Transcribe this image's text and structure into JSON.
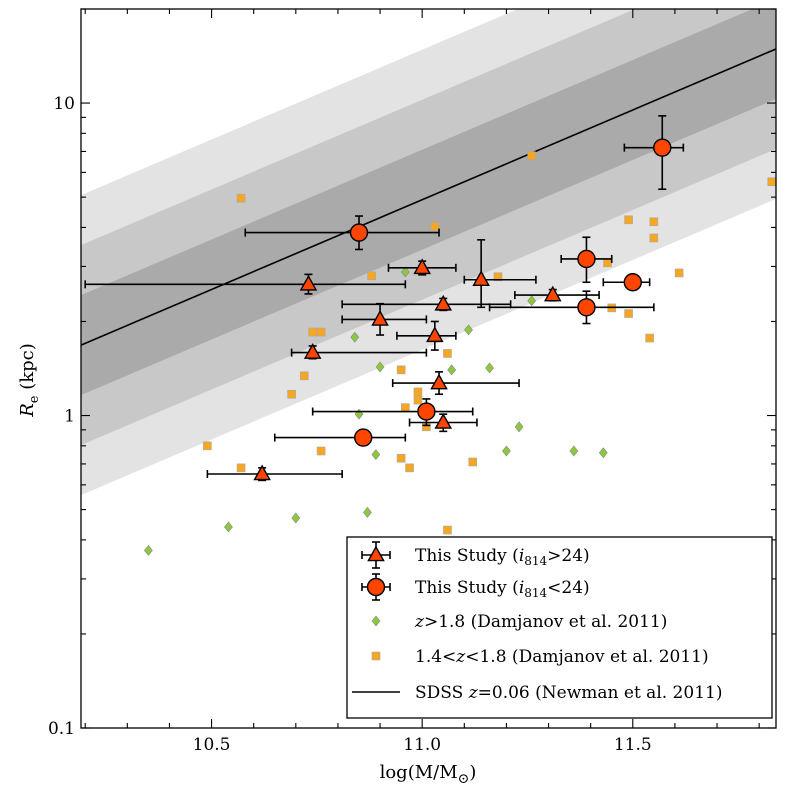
{
  "chart_data": {
    "type": "scatter",
    "xlabel": "log(M/M",
    "xlabel_sub": "⊙",
    "xlabel_close": ")",
    "ylabel": "R",
    "ylabel_sub": "e",
    "ylabel_unit": " (kpc)",
    "xlim": [
      10.19,
      11.84
    ],
    "ylim": [
      0.1,
      20
    ],
    "yscale": "log",
    "xticks": [
      {
        "value": 10.5,
        "label": "10.5"
      },
      {
        "value": 11.0,
        "label": "11.0"
      },
      {
        "value": 11.5,
        "label": "11.5"
      }
    ],
    "yticks": [
      {
        "value": 0.1,
        "label": "0.1"
      },
      {
        "value": 1,
        "label": "1"
      },
      {
        "value": 10,
        "label": "10"
      }
    ],
    "sdss_line": {
      "name": "SDSS z=0.06 (Newman et al. 2011)",
      "x": [
        10.19,
        11.84
      ],
      "y": [
        1.68,
        14.9
      ],
      "band_scatter_dex": [
        0.16,
        0.32,
        0.48
      ],
      "band_colors": [
        "#aaaaaa",
        "#c8c8c8",
        "#e3e3e3"
      ]
    },
    "series": [
      {
        "name": "This Study (i814>24)",
        "marker": "triangle",
        "color": "#ff4500",
        "points": [
          {
            "x": 10.73,
            "y": 2.63,
            "xerr": [
              0.53,
              0.23
            ],
            "yerr": [
              0.18,
              0.2
            ]
          },
          {
            "x": 11.0,
            "y": 2.97,
            "xerr": [
              0.08,
              0.08
            ],
            "yerr": [
              0.15,
              0.15
            ]
          },
          {
            "x": 11.14,
            "y": 2.72,
            "xerr": [
              0.04,
              0.13
            ],
            "yerr": [
              0.5,
              0.93
            ]
          },
          {
            "x": 11.31,
            "y": 2.43,
            "xerr": [
              0.09,
              0.11
            ],
            "yerr": [
              0.1,
              0.1
            ]
          },
          {
            "x": 11.05,
            "y": 2.27,
            "xerr": [
              0.24,
              0.16
            ],
            "yerr": [
              0.1,
              0.1
            ]
          },
          {
            "x": 10.9,
            "y": 2.03,
            "xerr": [
              0.09,
              0.11
            ],
            "yerr": [
              0.22,
              0.25
            ]
          },
          {
            "x": 11.03,
            "y": 1.8,
            "xerr": [
              0.09,
              0.05
            ],
            "yerr": [
              0.18,
              0.2
            ]
          },
          {
            "x": 10.74,
            "y": 1.59,
            "xerr": [
              0.05,
              0.27
            ],
            "yerr": [
              0.07,
              0.08
            ]
          },
          {
            "x": 11.04,
            "y": 1.27,
            "xerr": [
              0.11,
              0.19
            ],
            "yerr": [
              0.1,
              0.11
            ]
          },
          {
            "x": 11.05,
            "y": 0.95,
            "xerr": [
              0.08,
              0.08
            ],
            "yerr": [
              0.06,
              0.06
            ]
          },
          {
            "x": 10.62,
            "y": 0.65,
            "xerr": [
              0.13,
              0.19
            ],
            "yerr": [
              0.03,
              0.03
            ]
          }
        ]
      },
      {
        "name": "This Study (i814<24)",
        "marker": "circle",
        "color": "#ff4500",
        "points": [
          {
            "x": 11.57,
            "y": 7.2,
            "xerr": [
              0.09,
              0.05
            ],
            "yerr": [
              1.9,
              1.9
            ]
          },
          {
            "x": 10.85,
            "y": 3.85,
            "xerr": [
              0.27,
              0.19
            ],
            "yerr": [
              0.45,
              0.5
            ]
          },
          {
            "x": 11.39,
            "y": 3.17,
            "xerr": [
              0.06,
              0.06
            ],
            "yerr": [
              0.5,
              0.55
            ]
          },
          {
            "x": 11.5,
            "y": 2.67,
            "xerr": [
              0.07,
              0.04
            ],
            "yerr": [
              0.05,
              0.05
            ]
          },
          {
            "x": 11.39,
            "y": 2.22,
            "xerr": [
              0.23,
              0.16
            ],
            "yerr": [
              0.25,
              0.28
            ]
          },
          {
            "x": 11.01,
            "y": 1.03,
            "xerr": [
              0.27,
              0.11
            ],
            "yerr": [
              0.1,
              0.1
            ]
          },
          {
            "x": 10.86,
            "y": 0.85,
            "xerr": [
              0.21,
              0.1
            ],
            "yerr": [
              0.04,
              0.04
            ]
          }
        ]
      },
      {
        "name": "z>1.8 (Damjanov et al. 2011)",
        "marker": "diamond",
        "color": "#8dc63f",
        "points": [
          {
            "x": 10.35,
            "y": 0.37
          },
          {
            "x": 10.54,
            "y": 0.44
          },
          {
            "x": 10.7,
            "y": 0.47
          },
          {
            "x": 10.84,
            "y": 1.78
          },
          {
            "x": 10.85,
            "y": 1.01
          },
          {
            "x": 10.87,
            "y": 0.49
          },
          {
            "x": 10.89,
            "y": 0.75
          },
          {
            "x": 10.9,
            "y": 1.43
          },
          {
            "x": 10.96,
            "y": 2.88
          },
          {
            "x": 11.07,
            "y": 1.4
          },
          {
            "x": 11.11,
            "y": 1.88
          },
          {
            "x": 11.16,
            "y": 1.42
          },
          {
            "x": 11.2,
            "y": 0.77
          },
          {
            "x": 11.23,
            "y": 0.92
          },
          {
            "x": 11.26,
            "y": 2.33
          },
          {
            "x": 11.36,
            "y": 0.77
          },
          {
            "x": 11.43,
            "y": 0.76
          }
        ]
      },
      {
        "name": "1.4<z<1.8 (Damjanov et al. 2011)",
        "marker": "square",
        "color": "#f5a623",
        "points": [
          {
            "x": 10.49,
            "y": 0.8
          },
          {
            "x": 10.57,
            "y": 0.68
          },
          {
            "x": 10.57,
            "y": 4.96
          },
          {
            "x": 10.69,
            "y": 1.17
          },
          {
            "x": 10.72,
            "y": 1.34
          },
          {
            "x": 10.74,
            "y": 1.85
          },
          {
            "x": 10.76,
            "y": 1.85
          },
          {
            "x": 10.76,
            "y": 0.77
          },
          {
            "x": 10.88,
            "y": 2.8
          },
          {
            "x": 10.95,
            "y": 1.4
          },
          {
            "x": 10.95,
            "y": 0.73
          },
          {
            "x": 10.96,
            "y": 1.06
          },
          {
            "x": 10.97,
            "y": 0.68
          },
          {
            "x": 10.99,
            "y": 1.19
          },
          {
            "x": 10.99,
            "y": 1.12
          },
          {
            "x": 11.01,
            "y": 0.92
          },
          {
            "x": 11.03,
            "y": 4.03
          },
          {
            "x": 11.06,
            "y": 1.58
          },
          {
            "x": 11.06,
            "y": 0.43
          },
          {
            "x": 11.12,
            "y": 0.71
          },
          {
            "x": 11.18,
            "y": 2.78
          },
          {
            "x": 11.26,
            "y": 6.78
          },
          {
            "x": 11.44,
            "y": 3.08
          },
          {
            "x": 11.49,
            "y": 4.23
          },
          {
            "x": 11.49,
            "y": 2.12
          },
          {
            "x": 11.45,
            "y": 2.21
          },
          {
            "x": 11.54,
            "y": 1.77
          },
          {
            "x": 11.55,
            "y": 4.17
          },
          {
            "x": 11.55,
            "y": 3.7
          },
          {
            "x": 11.61,
            "y": 2.86
          },
          {
            "x": 11.83,
            "y": 5.6
          }
        ]
      }
    ],
    "legend": {
      "placement": "lower-right",
      "entries": [
        {
          "marker": "triangle",
          "color": "#ff4500",
          "errorbar": true,
          "pre": "This Study (",
          "var": "i",
          "sub": "814",
          "post": ">24)"
        },
        {
          "marker": "circle",
          "color": "#ff4500",
          "errorbar": true,
          "pre": "This Study (",
          "var": "i",
          "sub": "814",
          "post": "<24)"
        },
        {
          "marker": "diamond",
          "color": "#8dc63f",
          "errorbar": false,
          "pre": "",
          "var": "z",
          "sub": "",
          "post": ">1.8 (Damjanov et al. 2011)"
        },
        {
          "marker": "square",
          "color": "#f5a623",
          "errorbar": false,
          "pre": "1.4<",
          "var": "z",
          "sub": "",
          "post": "<1.8 (Damjanov et al. 2011)"
        },
        {
          "marker": "line",
          "color": "#000000",
          "errorbar": false,
          "pre": "SDSS ",
          "var": "z",
          "sub": "",
          "post": "=0.06 (Newman et al. 2011)"
        }
      ]
    }
  }
}
